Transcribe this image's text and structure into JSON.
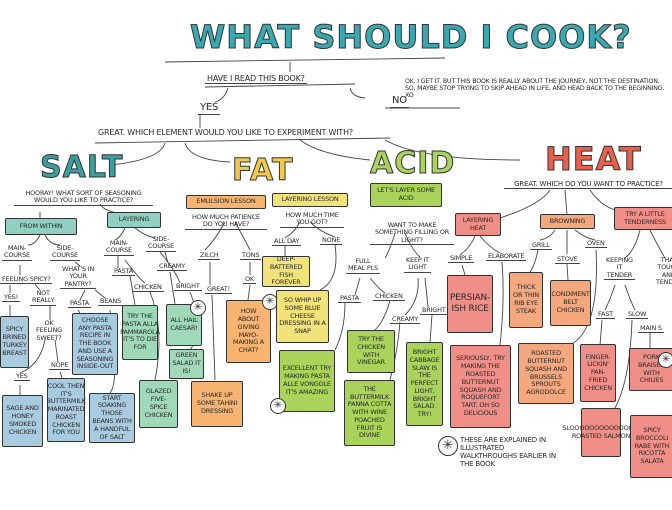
{
  "header": {
    "title": "WHAT SHOULD I COOK?",
    "question": "HAVE I READ THIS BOOK?",
    "yes": "YES",
    "no": "NO",
    "no_note": "Ok, I get it. But this book is really about the journey, not the destination. So, maybe stop trying to skip ahead in life, and head back to the beginning. XO",
    "element_question": "GREAT. WHICH ELEMENT WOULD YOU LIKE TO EXPERIMENT WITH?"
  },
  "colors": {
    "salt": "#3d9ea0",
    "fat": "#f2c94c",
    "acid": "#a9d35a",
    "heat": "#e8604c"
  },
  "salt": {
    "title": "SALT",
    "question": "HOORAY! WHAT SORT OF SEASONING WOULD YOU LIKE TO PRACTICE?",
    "from_within": "FROM WITHIN",
    "layering": "LAYERING",
    "main_course": "MAIN-\nCOURSE",
    "side_course": "SIDE-\nCOURSE",
    "feeling_spicy": "FEELING SPICY?",
    "pantry": "WHAT'S IN\nYOUR\nPANTRY?",
    "yes1": "YES!",
    "not_really": "NOT\nREALLY",
    "pasta": "PASTA",
    "beans": "BEANS",
    "ok_sweet": "OK\nFEELING\nSWEET?",
    "yes2": "YES",
    "nope": "NOPE",
    "chicken": "CHICKEN",
    "creamy": "CREAMY",
    "bright": "BRIGHT",
    "boxes": {
      "turkey": "SPICY BRINED TURKEY BREAST",
      "choose_pasta": "CHOOSE ANY PASTA RECIPE IN THE BOOK AND USE A SEASONING INSIDE-OUT",
      "pammarola": "TRY THE PASTA ALLA PAMMAROLA IT'S TO DIE FOR",
      "caesar": "ALL HAIL CAESAR!",
      "green_salad": "GREEN SALAD IT IS!",
      "sage": "SAGE AND HONEY SMOKED CHICKEN",
      "buttermilk": "COOL THEN IT'S BUTTERMILK MARINATED ROAST CHICKEN FOR YOU",
      "beans": "START SOAKING THOSE BEANS WITH A HANDFUL OF SALT",
      "glazed": "GLAZED FIVE-SPICE CHICKEN"
    }
  },
  "fat": {
    "title": "FAT",
    "emulsion": "EMULSION LESSON",
    "layering": "LAYERING LESSON",
    "patience": "HOW MUCH PATIENCE DO YOU HAVE?",
    "time": "HOW MUCH TIME YOU GOT?",
    "zilch": "ZILCH",
    "tons": "TONS",
    "all_day": "ALL DAY",
    "none": "NONE",
    "great": "GREAT!",
    "ok": "OK",
    "boxes": {
      "fish": "DEEP-BATTERED FISH FOREVER",
      "mayo": "HOW ABOUT GIVING MAYO-MAKING A CHAT?",
      "blue_cheese": "SO WHIP UP SOME BLUE CHEESE DRESSING IN A SNAP",
      "tahini": "SHAKE UP SOME TAHINI DRESSING",
      "vongole": "EXCELLENT TRY MAKING PASTA ALLE VONGOLE IT'S AMAZING"
    }
  },
  "acid": {
    "title": "ACID",
    "layer": "LET'S LAYER SOME ACID",
    "question": "WANT TO MAKE SOMETHING FILLING OR LIGHT?",
    "full_meal": "FULL\nMEAL PLS",
    "keep_light": "KEEP IT\nLIGHT",
    "pasta": "PASTA",
    "chicken": "CHICKEN",
    "creamy": "CREAMY",
    "bright": "BRIGHT",
    "boxes": {
      "vinegar": "TRY THE CHICKEN WITH VINEGAR",
      "slaw": "BRIGHT CABBAGE SLAW IS THE PERFECT LIGHT, BRIGHT SALAD. TRY!",
      "panna_cotta": "THE BUTTERMILK PANNA COTTA WITH WINE POACHED FRUIT IS DIVINE"
    }
  },
  "heat": {
    "title": "HEAT",
    "question": "GREAT. WHICH DO YOU WANT TO PRACTICE?",
    "layering": "LAYERING HEAT",
    "browning": "BROWNING",
    "tenderness": "TRY A LITTLE TENDERNESS",
    "simple": "SIMPLE",
    "elaborate": "ELABORATE",
    "grill": "GRILL",
    "stove": "STOVE",
    "oven": "OVEN",
    "keeping_tender": "KEEPING\nIT\nTENDER",
    "tough": "THAT\nTOUGH\nAND\nTENDER",
    "fast": "FAST",
    "slow": "SLOW",
    "main": "MAIN S",
    "boxes": {
      "rice": "PERSIAN-ISH RICE",
      "steak": "THICK OR THIN RIB EYE STEAK",
      "condiment": "CONDIMENT BELT CHICKEN",
      "tart": "SERIOUSLY, TRY MAKING THE ROASTED BUTTERNUT SQUASH AND ROQUEFORT TART. OH SO DELICIOUS",
      "agrodolce": "ROASTED BUTTERNUT SQUASH AND BRUSSELS SPROUTS AGRODOLCE",
      "fried": "FINGER-LICKIN' PAN-FRIED CHICKEN",
      "salmon": "SLOOOOOOOOOOOOOW ROASTED SALMON",
      "pork": "PORK BRAISED WITH CHILIES",
      "broccoli": "SPICY BROCCOLI RABE WITH RICOTTA SALATA"
    }
  },
  "footnote": {
    "icon": "asterisk-star-icon",
    "text": "THESE ARE EXPLAINED IN ILLUSTRATED WALKTHROUGHS EARLIER IN THE BOOK"
  }
}
